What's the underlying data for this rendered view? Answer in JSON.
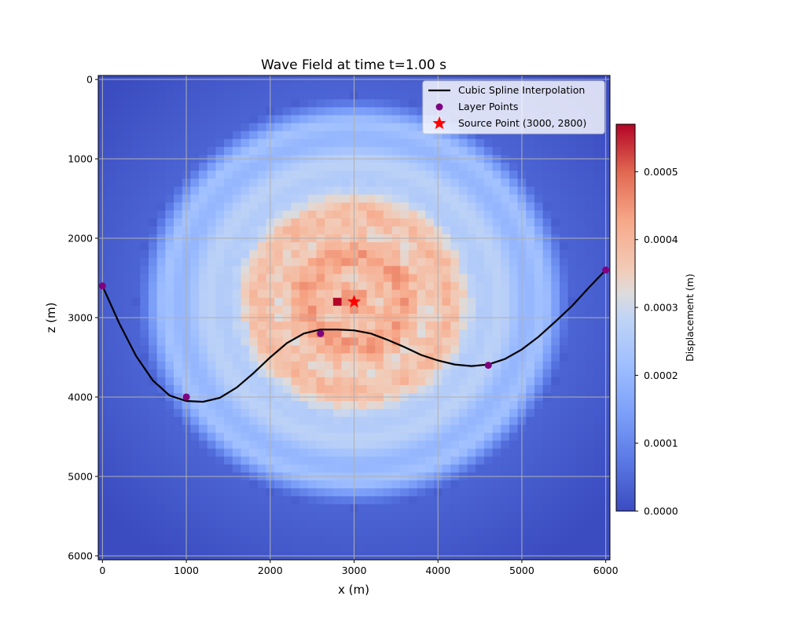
{
  "chart_data": {
    "type": "heatmap",
    "title": "Wave Field at time t=1.00 s",
    "xlabel": "x (m)",
    "ylabel": "z (m)",
    "xlim": [
      -50,
      6050
    ],
    "ylim": [
      6050,
      -50
    ],
    "y_inverted": true,
    "grid": true,
    "x_ticks": [
      0,
      1000,
      2000,
      3000,
      4000,
      5000,
      6000
    ],
    "y_ticks": [
      0,
      1000,
      2000,
      3000,
      4000,
      5000,
      6000
    ],
    "x_tick_labels": [
      "0",
      "1000",
      "2000",
      "3000",
      "4000",
      "5000",
      "6000"
    ],
    "y_tick_labels": [
      "0",
      "1000",
      "2000",
      "3000",
      "4000",
      "5000",
      "6000"
    ],
    "heatmap": {
      "grid_cells": 61,
      "cell_size_m": 100,
      "colormap": "coolwarm",
      "center": [
        3000,
        2800
      ],
      "approx_peak_value": 0.00057,
      "inner_region_value": 0.00042,
      "ring_value": 0.0003,
      "edge_value": 0.0
    },
    "colorbar": {
      "label": "Displacement (m)",
      "range": [
        0.0,
        0.00057
      ],
      "ticks": [
        0.0,
        0.0001,
        0.0002,
        0.0003,
        0.0004,
        0.0005
      ],
      "tick_labels": [
        "0.0000",
        "0.0001",
        "0.0002",
        "0.0003",
        "0.0004",
        "0.0005"
      ]
    },
    "series": [
      {
        "name": "Cubic Spline Interpolation",
        "type": "line",
        "color": "#000000",
        "x": [
          0,
          200,
          400,
          600,
          800,
          1000,
          1200,
          1400,
          1600,
          1800,
          2000,
          2200,
          2400,
          2600,
          2800,
          3000,
          3200,
          3400,
          3600,
          3800,
          4000,
          4200,
          4400,
          4600,
          4800,
          5000,
          5200,
          5400,
          5600,
          5800,
          6000
        ],
        "y": [
          2600,
          3070,
          3480,
          3790,
          3980,
          4050,
          4060,
          4010,
          3880,
          3700,
          3500,
          3320,
          3200,
          3150,
          3150,
          3160,
          3200,
          3280,
          3370,
          3470,
          3540,
          3590,
          3610,
          3590,
          3520,
          3400,
          3240,
          3050,
          2850,
          2620,
          2400
        ]
      },
      {
        "name": "Layer Points",
        "type": "scatter",
        "color": "#800080",
        "x": [
          0,
          1000,
          2600,
          4600,
          6000
        ],
        "y": [
          2600,
          4000,
          3200,
          3600,
          2400
        ]
      },
      {
        "name": "Source Point (3000, 2800)",
        "type": "scatter",
        "marker": "star",
        "color": "#ff0000",
        "x": [
          3000
        ],
        "y": [
          2800
        ]
      }
    ],
    "legend_position": "top-right"
  }
}
